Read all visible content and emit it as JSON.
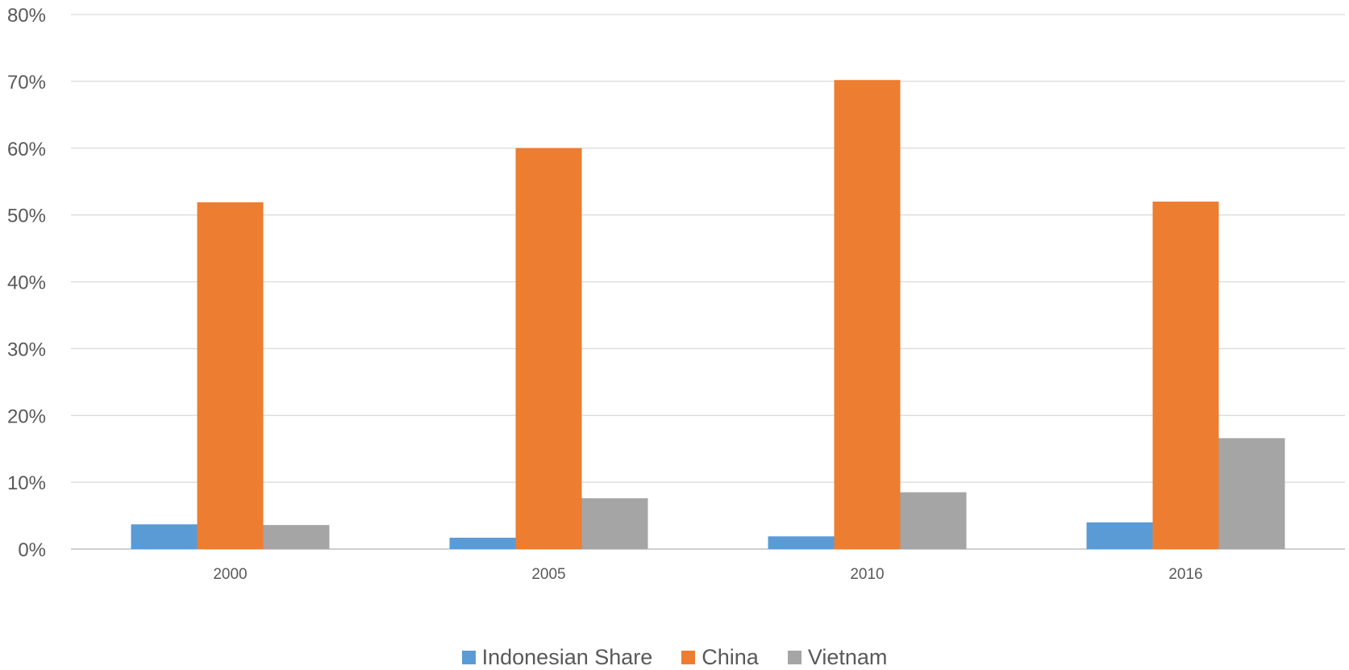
{
  "chart_data": {
    "type": "bar",
    "title": "",
    "xlabel": "",
    "ylabel": "",
    "categories": [
      "2000",
      "2005",
      "2010",
      "2016"
    ],
    "ylim": [
      0,
      80
    ],
    "y_ticks": [
      "0%",
      "10%",
      "20%",
      "30%",
      "40%",
      "50%",
      "60%",
      "70%",
      "80%"
    ],
    "y_unit": "%",
    "grid": true,
    "legend_position": "bottom",
    "series": [
      {
        "name": "Indonesian Share",
        "color": "#5b9bd5",
        "values": [
          3.7,
          1.7,
          1.9,
          4.0
        ]
      },
      {
        "name": "China",
        "color": "#ed7d31",
        "values": [
          51.9,
          60.0,
          70.2,
          52.0
        ]
      },
      {
        "name": "Vietnam",
        "color": "#a5a5a5",
        "values": [
          3.6,
          7.6,
          8.5,
          16.6
        ]
      }
    ]
  }
}
